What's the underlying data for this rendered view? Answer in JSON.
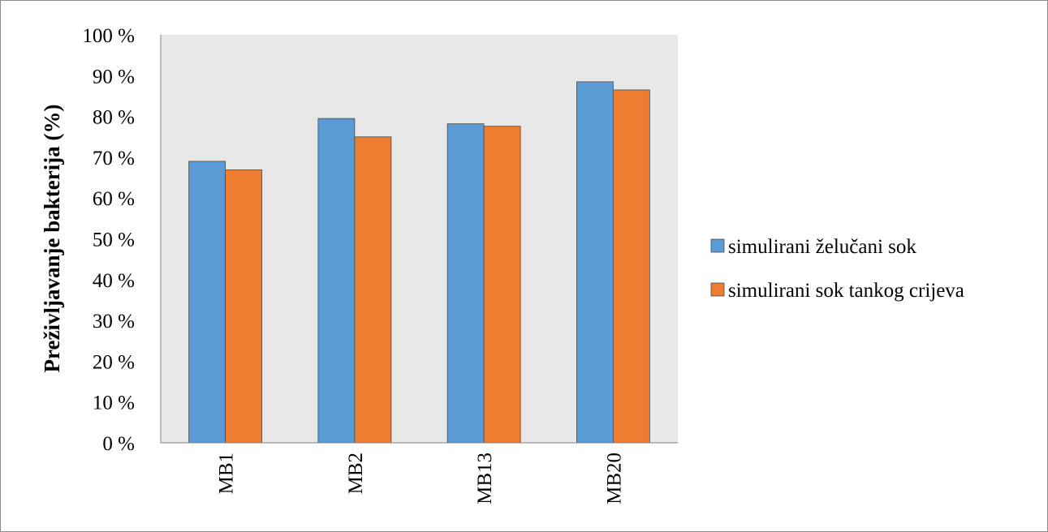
{
  "chart_data": {
    "type": "bar",
    "title": "",
    "xlabel": "",
    "ylabel": "Preživljavanje bakterija (%)",
    "categories": [
      "MB1",
      "MB2",
      "MB13",
      "MB20"
    ],
    "series": [
      {
        "name": "simulirani želučani sok",
        "values": [
          69,
          79.5,
          78.2,
          88.5
        ]
      },
      {
        "name": "simulirani sok tankog crijeva",
        "values": [
          66.9,
          75,
          77.6,
          86.5
        ]
      }
    ],
    "ylim": [
      0,
      100
    ],
    "yticks": [
      "0 %",
      "10 %",
      "20 %",
      "30 %",
      "40 %",
      "50 %",
      "60 %",
      "70 %",
      "80 %",
      "90 %",
      "100 %"
    ],
    "grid": false,
    "legend_position": "right",
    "colors": {
      "series_0": "#5b9bd5",
      "series_1": "#ed7d31",
      "plot_background": "#e8e8e8"
    }
  }
}
